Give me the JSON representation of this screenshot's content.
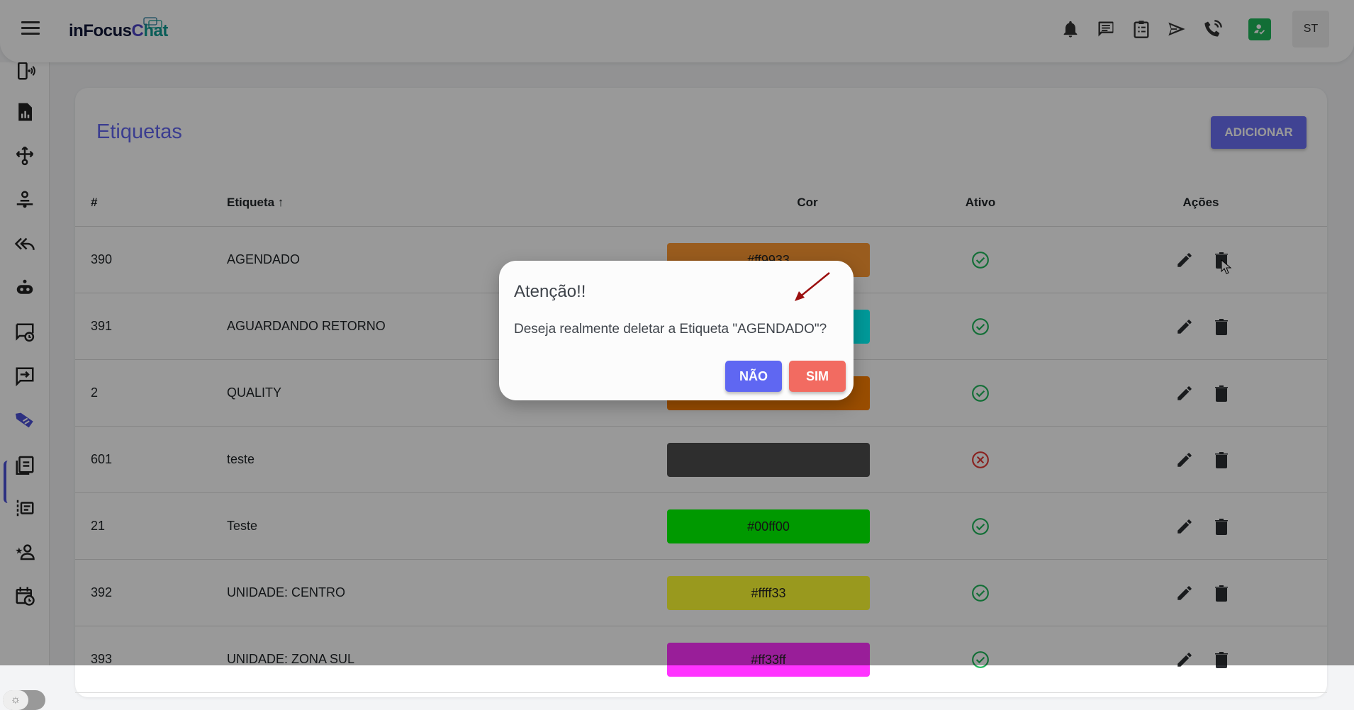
{
  "app": {
    "logo_text_1": "inFocus",
    "logo_text_2": "C",
    "logo_text_3": "hat",
    "avatar": "ST"
  },
  "header_icons": [
    "bell-icon",
    "chat-icon",
    "clipboard-list-icon",
    "send-icon",
    "phone-call-icon",
    "user-check-icon"
  ],
  "sidebar_icons": [
    "phone-wifi-icon",
    "report-icon",
    "flow-icon",
    "user-queue-icon",
    "reply-all-icon",
    "robot-icon",
    "scheduled-message-icon",
    "message-forward-icon",
    "tag-icon",
    "clipboard-icon",
    "list-icon",
    "star-user-icon",
    "calendar-clock-icon"
  ],
  "page": {
    "title": "Etiquetas",
    "add_button": "ADICIONAR"
  },
  "table": {
    "headers": {
      "id": "#",
      "label": "Etiqueta",
      "sort": "↑",
      "color": "Cor",
      "active": "Ativo",
      "actions": "Ações"
    },
    "rows": [
      {
        "id": "390",
        "label": "AGENDADO",
        "color": "#ff9933",
        "color_label": "#ff9933",
        "active": true
      },
      {
        "id": "391",
        "label": "AGUARDANDO RETORNO",
        "color": "#00ffff",
        "color_label": "",
        "active": true
      },
      {
        "id": "2",
        "label": "QUALITY",
        "color": "#ff8000",
        "color_label": "",
        "active": true
      },
      {
        "id": "601",
        "label": "teste",
        "color": "#4d4d4d",
        "color_label": "",
        "active": false
      },
      {
        "id": "21",
        "label": "Teste",
        "color": "#00ff00",
        "color_label": "#00ff00",
        "active": true
      },
      {
        "id": "392",
        "label": "UNIDADE: CENTRO",
        "color": "#ffff33",
        "color_label": "#ffff33",
        "active": true
      },
      {
        "id": "393",
        "label": "UNIDADE: ZONA SUL",
        "color": "#ff33ff",
        "color_label": "#ff33ff",
        "active": true
      }
    ]
  },
  "dialog": {
    "title": "Atenção!!",
    "message": "Deseja realmente deletar a Etiqueta \"AGENDADO\"?",
    "no": "NÃO",
    "yes": "SIM"
  },
  "colors": {
    "accent": "#6366f1",
    "success": "#1fb85a",
    "danger": "#e53935",
    "confirm": "#f26b61"
  }
}
